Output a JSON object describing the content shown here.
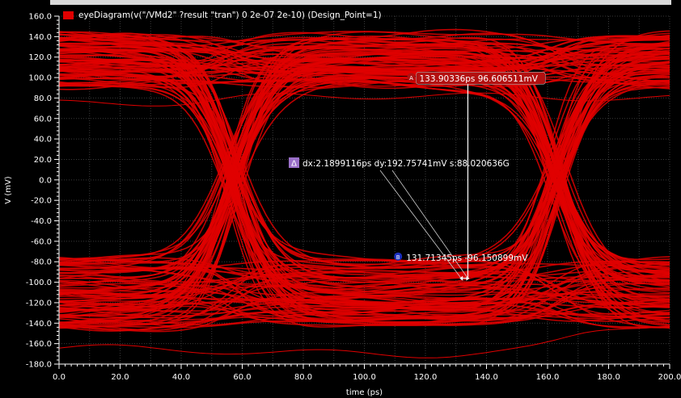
{
  "legend": {
    "label": "eyeDiagram(v(\"/VMd2\" ?result \"tran\") 0 2e-07 2e-10) (Design_Point=1)"
  },
  "colors": {
    "trace": "#e00000",
    "background": "#000000",
    "grid": "#3a3a3a",
    "axis": "#ffffff"
  },
  "chart_data": {
    "type": "line",
    "chart_kind": "eye-diagram",
    "xlabel": "time (ps)",
    "ylabel": "V (mV)",
    "xlim": [
      0.0,
      200.0
    ],
    "ylim": [
      -180.0,
      160.0
    ],
    "x_ticks": [
      "0.0",
      "20.0",
      "40.0",
      "60.0",
      "80.0",
      "100.0",
      "120.0",
      "140.0",
      "160.0",
      "180.0",
      "200.0"
    ],
    "y_ticks": [
      "160.0",
      "140.0",
      "120.0",
      "100.0",
      "80.0",
      "60.0",
      "40.0",
      "20.0",
      "0.0",
      "-20.0",
      "-40.0",
      "-60.0",
      "-80.0",
      "-100.0",
      "-120.0",
      "-140.0",
      "-160.0",
      "-180.0"
    ],
    "grid": true,
    "legend_position": "top-left",
    "series": [
      {
        "name": "eyeDiagram(v(\"/VMd2\" ?result \"tran\") 0 2e-07 2e-10) (Design_Point=1)",
        "crossing_times_ps": [
          57,
          163
        ],
        "high_level_mV": [
          90,
          150
        ],
        "low_level_mV": [
          -150,
          -75
        ]
      }
    ],
    "markers": [
      {
        "id": "A",
        "x": 133.90336,
        "y": 96.606511,
        "label": "133.90336ps 96.606511mV",
        "badge_color": "#b01010"
      },
      {
        "id": "B",
        "x": 131.71345,
        "y": -96.150899,
        "label": "131.71345ps -96.150899mV",
        "badge_color": "#1a2fc0"
      }
    ],
    "delta": {
      "label": "dx:2.1899116ps dy:192.75741mV s:88.020636G",
      "symbol": "Δ",
      "badge_color": "#9a6fc8"
    }
  }
}
